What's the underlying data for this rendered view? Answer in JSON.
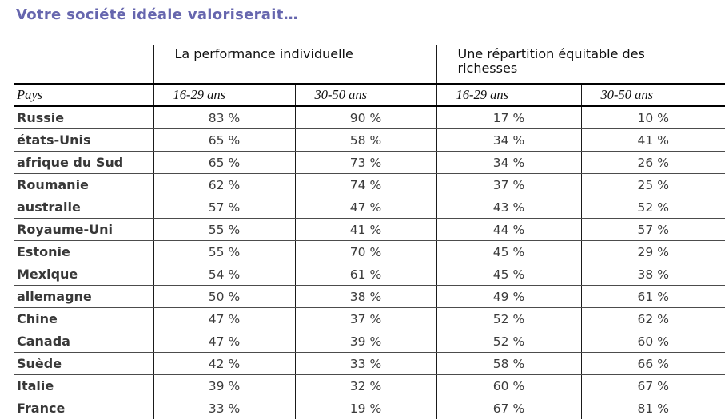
{
  "title": "Votre société idéale valoriserait…",
  "colors": {
    "title_text": "#6666ae",
    "body_text": "#3b3b3b",
    "heavy_line": "#000000",
    "row_line": "#4c4c4c"
  },
  "table": {
    "group_headers": [
      "La performance individuelle",
      "Une répartition équitable des richesses"
    ],
    "col_headers": [
      "Pays",
      "16-29 ans",
      "30-50 ans",
      "16-29 ans",
      "30-50 ans"
    ],
    "rows": [
      {
        "country": "Russie",
        "values": [
          "83 %",
          "90 %",
          "17 %",
          "10 %"
        ]
      },
      {
        "country": "états-Unis",
        "values": [
          "65 %",
          "58 %",
          "34 %",
          "41 %"
        ]
      },
      {
        "country": "afrique du Sud",
        "values": [
          "65 %",
          "73 %",
          "34 %",
          "26 %"
        ]
      },
      {
        "country": "Roumanie",
        "values": [
          "62 %",
          "74 %",
          "37 %",
          "25 %"
        ]
      },
      {
        "country": "australie",
        "values": [
          "57 %",
          "47 %",
          "43 %",
          "52 %"
        ]
      },
      {
        "country": "Royaume-Uni",
        "values": [
          "55 %",
          "41 %",
          "44 %",
          "57 %"
        ]
      },
      {
        "country": "Estonie",
        "values": [
          "55 %",
          "70 %",
          "45 %",
          "29 %"
        ]
      },
      {
        "country": "Mexique",
        "values": [
          "54 %",
          "61 %",
          "45 %",
          "38 %"
        ]
      },
      {
        "country": "allemagne",
        "values": [
          "50 %",
          "38 %",
          "49 %",
          "61 %"
        ]
      },
      {
        "country": "Chine",
        "values": [
          "47 %",
          "37 %",
          "52 %",
          "62 %"
        ]
      },
      {
        "country": "Canada",
        "values": [
          "47 %",
          "39 %",
          "52 %",
          "60 %"
        ]
      },
      {
        "country": "Suède",
        "values": [
          "42 %",
          "33 %",
          "58 %",
          "66 %"
        ]
      },
      {
        "country": "Italie",
        "values": [
          "39 %",
          "32 %",
          "60 %",
          "67 %"
        ]
      },
      {
        "country": "France",
        "values": [
          "33 %",
          "19 %",
          "67 %",
          "81 %"
        ]
      }
    ]
  }
}
